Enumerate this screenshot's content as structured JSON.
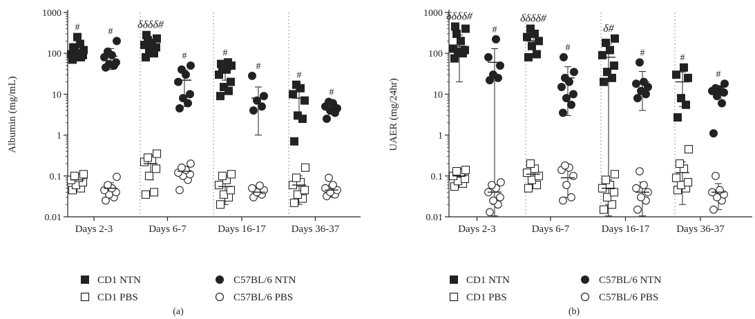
{
  "figure_colors": {
    "ink": "#222222",
    "background": "#ffffff"
  },
  "panels": [
    {
      "label": "(a)",
      "ylabel": "Albumin (mg/mL)"
    },
    {
      "label": "(b)",
      "ylabel": "UAER (mg/24hr)"
    }
  ],
  "legend": {
    "cd1_ntn": "CD1 NTN",
    "c57_ntn": "C57BL/6 NTN",
    "cd1_pbs": "CD1 PBS",
    "c57_pbs": "C57BL/6 PBS"
  },
  "chart_data": [
    {
      "type": "scatter",
      "title": "",
      "panel": "(a)",
      "ylabel": "Albumin (mg/mL)",
      "yscale": "log",
      "ylim": [
        0.01,
        1000
      ],
      "yticks": [
        "0.01",
        "0.1",
        "1",
        "10",
        "100",
        "1000"
      ],
      "categories": [
        "Days 2-3",
        "Days 6-7",
        "Days 16-17",
        "Days 36-37"
      ],
      "grid": false,
      "legend_position": "bottom",
      "annotations": [
        {
          "category": "Days 2-3",
          "series": "CD1 NTN",
          "text": "#"
        },
        {
          "category": "Days 2-3",
          "series": "C57BL/6 NTN",
          "text": "#"
        },
        {
          "category": "Days 6-7",
          "series": "CD1 NTN",
          "text": "δδδδ#"
        },
        {
          "category": "Days 6-7",
          "series": "C57BL/6 NTN",
          "text": "#"
        },
        {
          "category": "Days 16-17",
          "series": "CD1 NTN",
          "text": "#"
        },
        {
          "category": "Days 16-17",
          "series": "C57BL/6 NTN",
          "text": "#"
        },
        {
          "category": "Days 36-37",
          "series": "CD1 NTN",
          "text": "#"
        },
        {
          "category": "Days 36-37",
          "series": "C57BL/6 NTN",
          "text": "#"
        }
      ],
      "series": [
        {
          "name": "CD1 NTN",
          "marker": "filled-square",
          "values": [
            [
              70,
              80,
              85,
              90,
              95,
              100,
              110,
              120,
              140,
              170,
              250
            ],
            [
              80,
              100,
              120,
              140,
              160,
              180,
              210,
              230,
              280
            ],
            [
              9,
              12,
              15,
              20,
              30,
              40,
              45,
              50,
              55,
              60
            ],
            [
              0.7,
              2.5,
              3,
              7,
              10,
              14,
              17
            ]
          ],
          "mean": [
            110,
            160,
            40,
            8
          ],
          "sd": [
            45,
            60,
            18,
            5
          ]
        },
        {
          "name": "C57BL/6 NTN",
          "marker": "filled-circle",
          "values": [
            [
              45,
              50,
              55,
              60,
              80,
              90,
              110,
              200
            ],
            [
              4.5,
              6,
              8,
              10,
              20,
              30,
              40,
              50
            ],
            [
              4,
              5,
              7,
              9,
              28
            ],
            [
              2.5,
              3.5,
              4,
              4.5,
              5,
              6,
              6.5
            ]
          ],
          "mean": [
            85,
            22,
            8,
            4.5
          ],
          "sd": [
            45,
            17,
            7,
            1.3
          ]
        },
        {
          "name": "CD1 PBS",
          "marker": "open-square",
          "values": [
            [
              0.045,
              0.05,
              0.06,
              0.07,
              0.08,
              0.09,
              0.1,
              0.11
            ],
            [
              0.035,
              0.04,
              0.1,
              0.15,
              0.22,
              0.25,
              0.28,
              0.35
            ],
            [
              0.02,
              0.03,
              0.035,
              0.045,
              0.06,
              0.08,
              0.1,
              0.11
            ],
            [
              0.022,
              0.028,
              0.035,
              0.045,
              0.06,
              0.07,
              0.09,
              0.16
            ]
          ],
          "mean": [
            0.08,
            0.2,
            0.055,
            0.06
          ],
          "sd": [
            0.02,
            0.12,
            0.035,
            0.04
          ]
        },
        {
          "name": "C57BL/6 PBS",
          "marker": "open-circle",
          "values": [
            [
              0.025,
              0.03,
              0.035,
              0.04,
              0.045,
              0.05,
              0.06,
              0.095
            ],
            [
              0.045,
              0.08,
              0.1,
              0.11,
              0.12,
              0.14,
              0.16,
              0.2
            ],
            [
              0.03,
              0.035,
              0.04,
              0.045,
              0.05,
              0.058
            ],
            [
              0.032,
              0.035,
              0.04,
              0.045,
              0.05,
              0.06,
              0.09
            ]
          ],
          "mean": [
            0.05,
            0.13,
            0.04,
            0.045
          ],
          "sd": [
            0.018,
            0.04,
            0.008,
            0.015
          ]
        }
      ]
    },
    {
      "type": "scatter",
      "title": "",
      "panel": "(b)",
      "ylabel": "UAER (mg/24hr)",
      "yscale": "log",
      "ylim": [
        0.01,
        1000
      ],
      "yticks": [
        "0.01",
        "0.1",
        "1",
        "10",
        "100",
        "1000"
      ],
      "categories": [
        "Days 2-3",
        "Days 6-7",
        "Days 16-17",
        "Days 36-37"
      ],
      "grid": false,
      "legend_position": "bottom",
      "annotations": [
        {
          "category": "Days 2-3",
          "series": "CD1 NTN",
          "text": "δδδδ#"
        },
        {
          "category": "Days 2-3",
          "series": "C57BL/6 NTN",
          "text": "#"
        },
        {
          "category": "Days 6-7",
          "series": "CD1 NTN",
          "text": "δδδδ#"
        },
        {
          "category": "Days 6-7",
          "series": "C57BL/6 NTN",
          "text": "#"
        },
        {
          "category": "Days 16-17",
          "series": "CD1 NTN",
          "text": "δ#"
        },
        {
          "category": "Days 16-17",
          "series": "C57BL/6 NTN",
          "text": "#"
        },
        {
          "category": "Days 36-37",
          "series": "CD1 NTN",
          "text": "#"
        },
        {
          "category": "Days 36-37",
          "series": "C57BL/6 NTN",
          "text": "#"
        }
      ],
      "series": [
        {
          "name": "CD1 NTN",
          "marker": "filled-square",
          "values": [
            [
              75,
              100,
              110,
              120,
              130,
              200,
              300,
              400,
              450
            ],
            [
              80,
              95,
              150,
              200,
              250,
              300,
              400
            ],
            [
              20,
              25,
              35,
              50,
              90,
              120,
              180,
              230
            ],
            [
              2.7,
              5.5,
              8,
              25,
              30,
              45
            ]
          ],
          "mean": [
            150,
            200,
            80,
            20
          ],
          "sd": [
            130,
            110,
            90,
            15
          ]
        },
        {
          "name": "C57BL/6 NTN",
          "marker": "filled-circle",
          "values": [
            [
              22,
              25,
              30,
              50,
              80,
              220
            ],
            [
              3.5,
              5.5,
              8,
              10,
              15,
              20,
              25,
              35,
              80
            ],
            [
              8,
              10,
              12,
              15,
              18,
              20,
              60
            ],
            [
              1.1,
              6,
              9,
              11,
              12,
              13,
              14,
              18
            ]
          ],
          "mean": [
            60,
            25,
            20,
            12
          ],
          "sd": [
            70,
            22,
            16,
            4
          ]
        },
        {
          "name": "CD1 PBS",
          "marker": "open-square",
          "values": [
            [
              0.055,
              0.065,
              0.075,
              0.085,
              0.1,
              0.12,
              0.13,
              0.14
            ],
            [
              0.05,
              0.06,
              0.08,
              0.1,
              0.12,
              0.15,
              0.2
            ],
            [
              0.015,
              0.02,
              0.03,
              0.04,
              0.05,
              0.06,
              0.08,
              0.11
            ],
            [
              0.045,
              0.05,
              0.06,
              0.07,
              0.09,
              0.15,
              0.2,
              0.45
            ]
          ],
          "mean": [
            0.1,
            0.11,
            0.05,
            0.12
          ],
          "sd": [
            0.03,
            0.04,
            0.03,
            0.1
          ]
        },
        {
          "name": "C57BL/6 PBS",
          "marker": "open-circle",
          "values": [
            [
              0.013,
              0.02,
              0.025,
              0.03,
              0.04,
              0.05,
              0.06,
              0.07
            ],
            [
              0.025,
              0.03,
              0.06,
              0.1,
              0.14,
              0.16,
              0.18
            ],
            [
              0.015,
              0.025,
              0.03,
              0.04,
              0.05,
              0.06,
              0.13
            ],
            [
              0.015,
              0.025,
              0.03,
              0.035,
              0.04,
              0.045,
              0.1
            ]
          ],
          "mean": [
            0.04,
            0.09,
            0.04,
            0.04
          ],
          "sd": [
            0.02,
            0.06,
            0.03,
            0.025
          ]
        }
      ]
    }
  ]
}
